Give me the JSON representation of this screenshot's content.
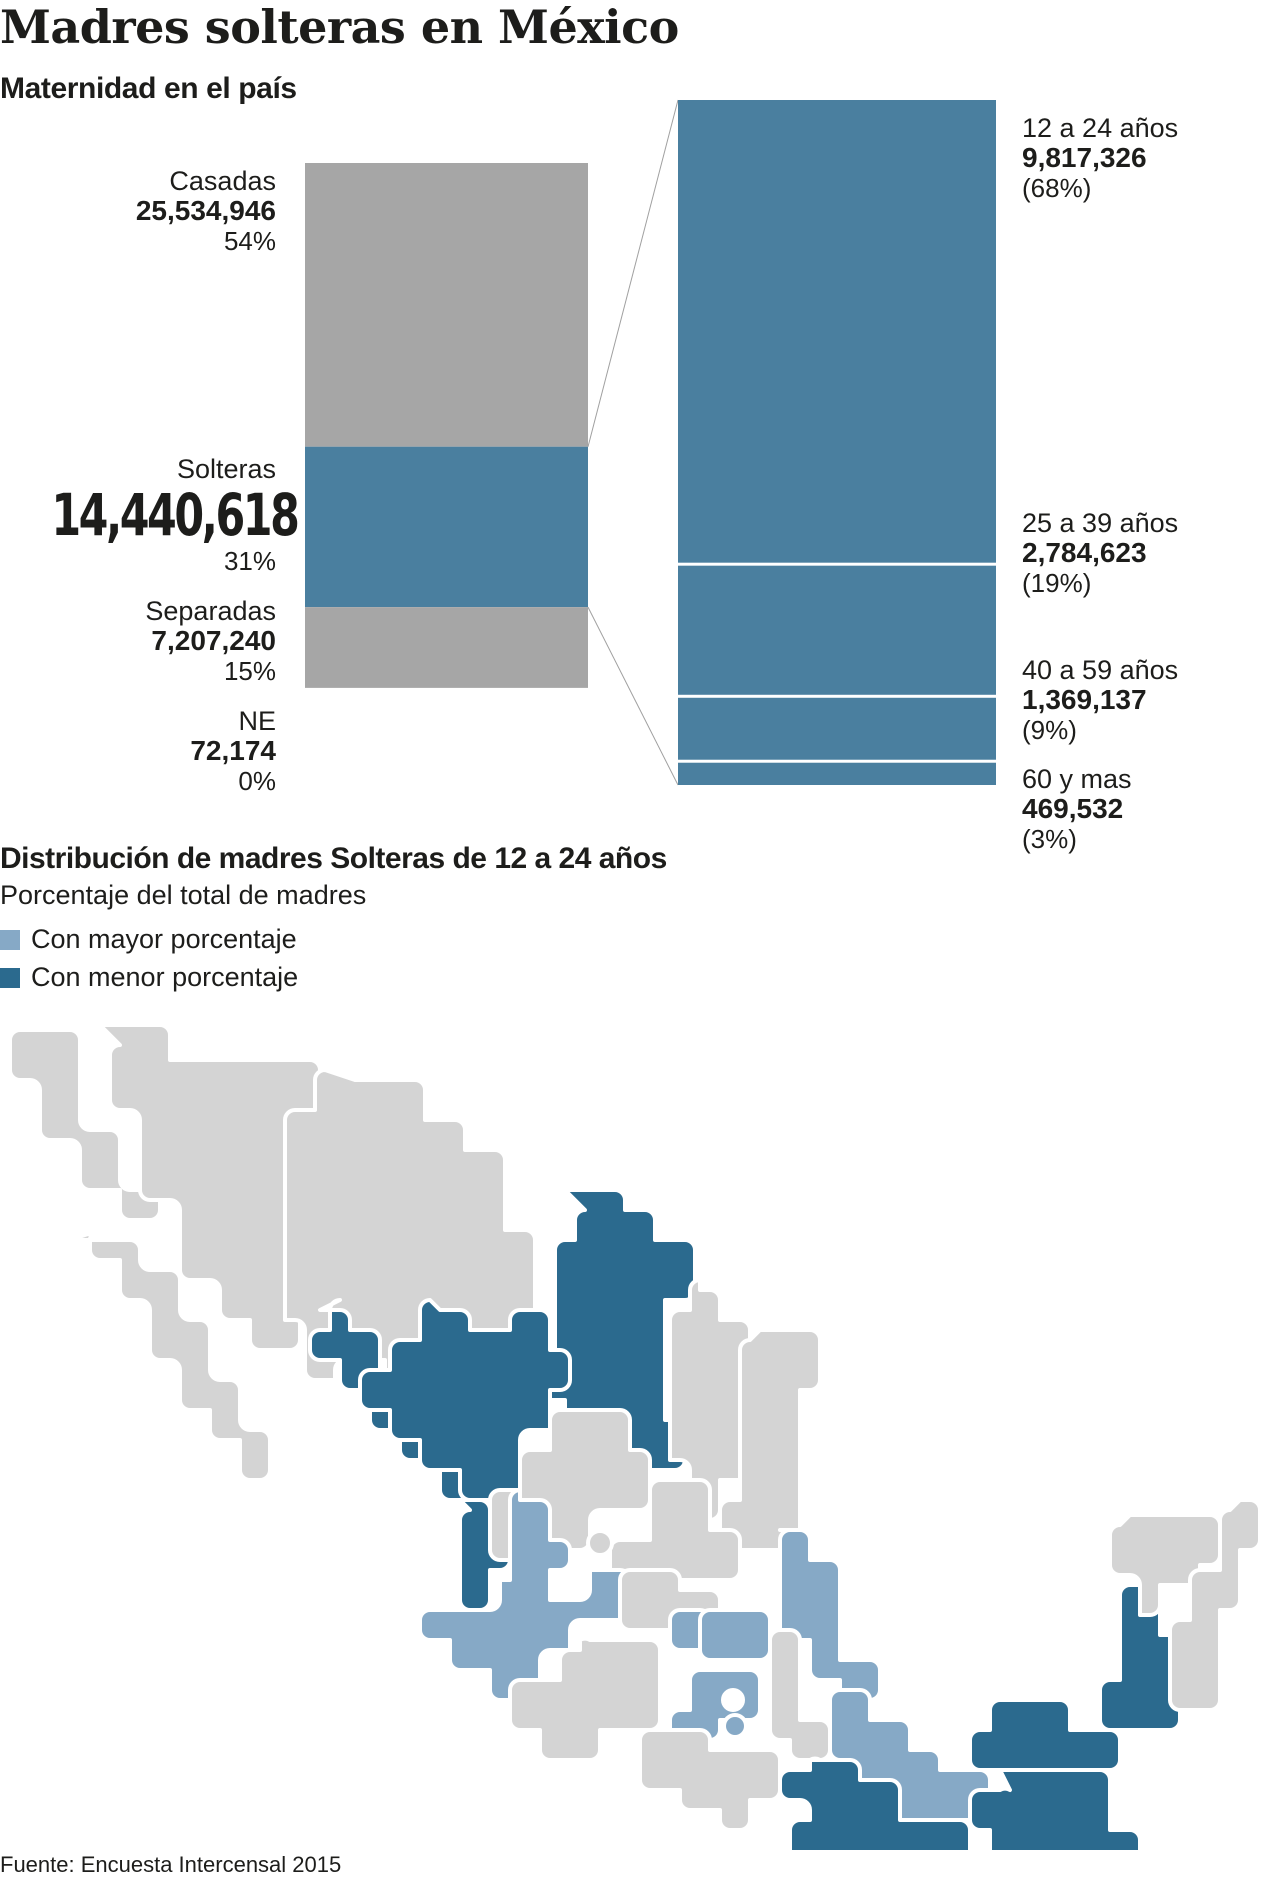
{
  "title": "Madres solteras en México",
  "chart_data": [
    {
      "type": "bar",
      "subtitle": "Maternidad en el país",
      "stacked": true,
      "categories": [
        "Casadas",
        "Solteras",
        "Separadas",
        "NE"
      ],
      "values": [
        25534946,
        14440618,
        7207240,
        72174
      ],
      "value_labels": [
        "25,534,946",
        "14,440,618",
        "7,207,240",
        "72,174"
      ],
      "percent_labels": [
        "54%",
        "31%",
        "15%",
        "0%"
      ],
      "colors": [
        "#a6a6a6",
        "#4a7f9f",
        "#a6a6a6",
        "#a6a6a6"
      ]
    },
    {
      "type": "bar",
      "stacked": true,
      "categories": [
        "12 a 24 años",
        "25 a 39 años",
        "40 a 59 años",
        "60 y mas"
      ],
      "values": [
        9817326,
        2784623,
        1369137,
        469532
      ],
      "value_labels": [
        "9,817,326",
        "2,784,623",
        "1,369,137",
        "469,532"
      ],
      "percent_labels": [
        "(68%)",
        "(19%)",
        "(9%)",
        "(3%)"
      ],
      "color": "#4a7f9f"
    }
  ],
  "map": {
    "title": "Distribución de madres Solteras de 12 a 24 años",
    "subtitle": "Porcentaje del total de madres",
    "legend": [
      {
        "label": "Con mayor porcentaje",
        "color": "#86a9c6"
      },
      {
        "label": "Con menor porcentaje",
        "color": "#2b6a8e"
      }
    ],
    "other_color": "#d4d4d4"
  },
  "source": "Fuente: Encuesta Intercensal 2015"
}
